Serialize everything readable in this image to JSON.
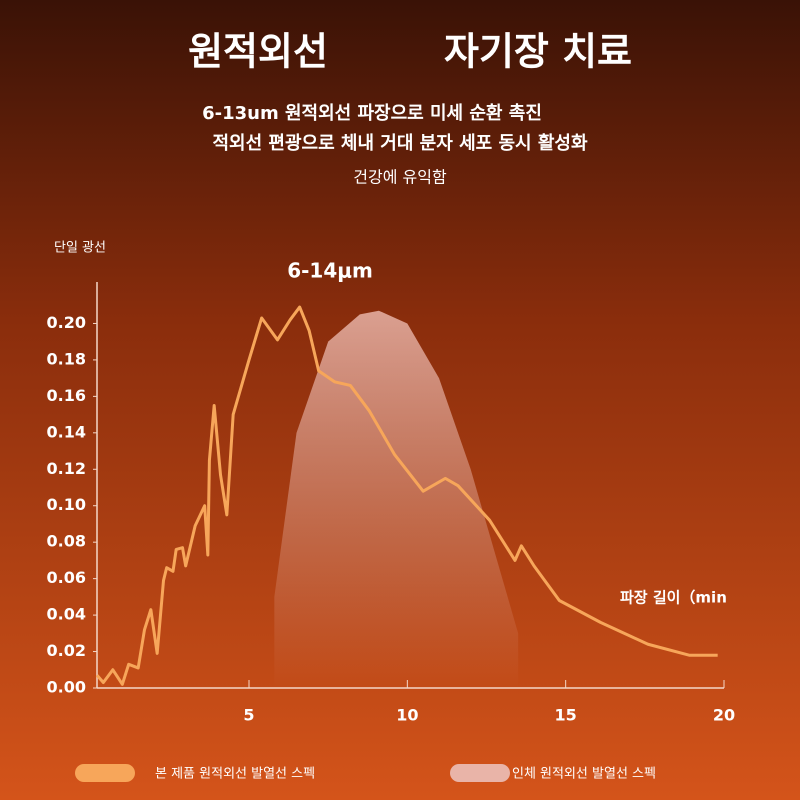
{
  "title": "원적외선",
  "title_right": "자기장 치료",
  "subtitle_lines": [
    "6-13um 원적외선 파장으로 미세 순환 촉진",
    "적외선 편광으로 체내 거대 분자 세포 동시 활성화",
    "건강에 유익함"
  ],
  "chart_data": {
    "type": "line",
    "y_label": "단일 광선",
    "x_label": "파장 길이（min",
    "annotation": "6-14μm",
    "xlim": [
      0.2,
      20
    ],
    "xticks": [
      5,
      10,
      15,
      20
    ],
    "ylim": [
      0,
      0.22
    ],
    "yticks": [
      {
        "value": 0,
        "label": "0.00"
      },
      {
        "value": 0.02,
        "label": "0.02"
      },
      {
        "value": 0.04,
        "label": "0.04"
      },
      {
        "value": 0.06,
        "label": "0.06"
      },
      {
        "value": 0.08,
        "label": "0.08"
      },
      {
        "value": 0.1,
        "label": "0.10"
      },
      {
        "value": 0.12,
        "label": "0.12"
      },
      {
        "value": 0.14,
        "label": "0.14"
      },
      {
        "value": 0.16,
        "label": "0.16"
      },
      {
        "value": 0.18,
        "label": "0.18"
      },
      {
        "value": 0.2,
        "label": "0.20"
      }
    ],
    "series": [
      {
        "name": "본 제품 원적외선 발열선 스펙",
        "color": "#f7a65a",
        "fill": false,
        "x": [
          0.2,
          0.4,
          0.7,
          1.0,
          1.2,
          1.5,
          1.7,
          1.9,
          2.1,
          2.3,
          2.4,
          2.6,
          2.7,
          2.9,
          3.0,
          3.3,
          3.6,
          3.7,
          3.75,
          3.9,
          4.1,
          4.3,
          4.5,
          5.0,
          5.4,
          5.9,
          6.3,
          6.6,
          6.9,
          7.2,
          7.7,
          8.2,
          8.8,
          9.6,
          10.5,
          11.2,
          11.6,
          12.6,
          13.4,
          13.6,
          14.0,
          14.8,
          16.1,
          17.6,
          18.9,
          19.8
        ],
        "values": [
          0.007,
          0.003,
          0.01,
          0.002,
          0.013,
          0.011,
          0.032,
          0.043,
          0.019,
          0.059,
          0.066,
          0.064,
          0.076,
          0.077,
          0.067,
          0.089,
          0.1,
          0.073,
          0.125,
          0.155,
          0.117,
          0.095,
          0.15,
          0.18,
          0.203,
          0.191,
          0.202,
          0.209,
          0.196,
          0.174,
          0.168,
          0.166,
          0.152,
          0.128,
          0.108,
          0.115,
          0.111,
          0.092,
          0.07,
          0.078,
          0.067,
          0.048,
          0.036,
          0.024,
          0.018,
          0.018
        ]
      },
      {
        "name": "인체 원적외선 발열선 스펙",
        "color": "#e9b4a8",
        "fill": true,
        "x": [
          5.8,
          6.5,
          7.5,
          8.5,
          9.1,
          10,
          11,
          12,
          13,
          13.5
        ],
        "values": [
          0.05,
          0.14,
          0.19,
          0.205,
          0.207,
          0.2,
          0.17,
          0.12,
          0.06,
          0.03
        ]
      }
    ]
  }
}
